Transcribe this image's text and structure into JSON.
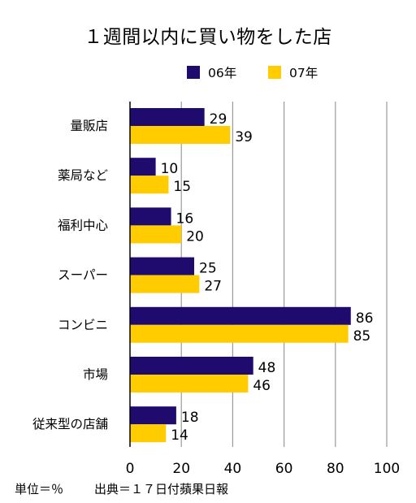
{
  "chart_data": {
    "type": "bar",
    "orientation": "horizontal",
    "title": "１週間以内に買い物をした店",
    "categories": [
      "量販店",
      "薬局など",
      "福利中心",
      "スーパー",
      "コンビニ",
      "市場",
      "従来型の店舗"
    ],
    "series": [
      {
        "name": "06年",
        "color": "#1f0a6e",
        "values": [
          29,
          10,
          16,
          25,
          86,
          48,
          18
        ]
      },
      {
        "name": "07年",
        "color": "#ffcc00",
        "values": [
          39,
          15,
          20,
          27,
          85,
          46,
          14
        ]
      }
    ],
    "xlim": [
      0,
      100
    ],
    "xticks": [
      "0",
      "20",
      "40",
      "60",
      "80",
      "100"
    ],
    "grid": true,
    "legend_position": "top-right"
  },
  "footnote": {
    "unit": "単位＝％",
    "source": "出典＝１７日付蘋果日報"
  }
}
